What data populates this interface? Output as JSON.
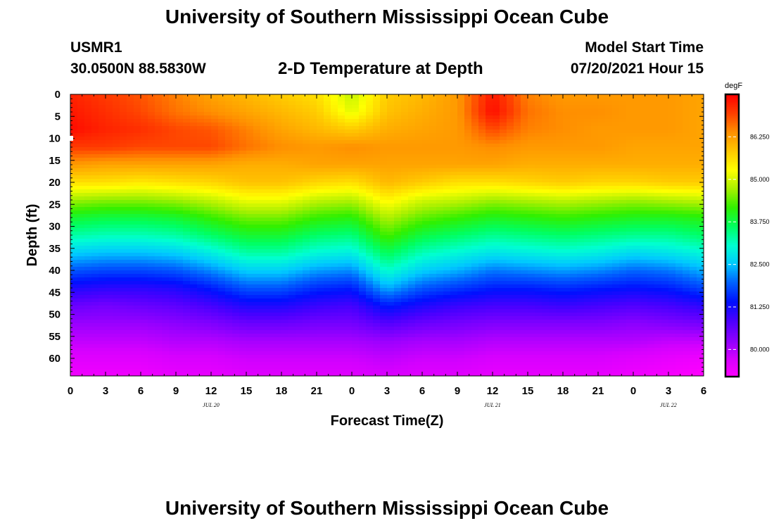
{
  "header": {
    "title": "University of Southern Mississippi Ocean Cube",
    "station_id": "USMR1",
    "coords": "30.0500N  88.5830W",
    "subtitle": "2-D Temperature at Depth",
    "start_label": "Model Start Time",
    "start_value": "07/20/2021 Hour 15"
  },
  "footer": {
    "title": "University of Southern Mississippi Ocean Cube"
  },
  "chart_data": {
    "type": "heatmap",
    "title": "2-D Temperature at Depth",
    "xlabel": "Forecast Time(Z)",
    "ylabel": "Depth (ft)",
    "x_ticks": [
      "0",
      "3",
      "6",
      "9",
      "12",
      "15",
      "18",
      "21",
      "0",
      "3",
      "6",
      "9",
      "12",
      "15",
      "18",
      "21",
      "0",
      "3",
      "6"
    ],
    "x_range_hours": [
      0,
      54
    ],
    "date_labels": [
      {
        "text": "JUL 20",
        "hour": 12
      },
      {
        "text": "JUL 21",
        "hour": 36
      },
      {
        "text": "JUL 22",
        "hour": 51
      }
    ],
    "y_ticks": [
      "0",
      "5",
      "10",
      "15",
      "20",
      "25",
      "30",
      "35",
      "40",
      "45",
      "50",
      "55",
      "60"
    ],
    "y_range_ft": [
      0,
      64
    ],
    "colorbar": {
      "unit": "degF",
      "min": 79.2,
      "max": 87.5,
      "tick_values": [
        80.0,
        81.25,
        82.5,
        83.75,
        85.0,
        86.25
      ],
      "tick_labels": [
        "80.000",
        "81.250",
        "82.500",
        "83.750",
        "85.000",
        "86.250"
      ]
    },
    "colormap": [
      "#ff00ff",
      "#d400ff",
      "#8a00ff",
      "#4a00ff",
      "#0010ff",
      "#0060ff",
      "#00c8ff",
      "#00ffd0",
      "#00ff60",
      "#30f000",
      "#a8f000",
      "#ffff00",
      "#ffc800",
      "#ff9000",
      "#ff4000",
      "#ff0000"
    ],
    "depth_grid_ft": [
      0,
      4,
      8,
      12,
      16,
      20,
      24,
      28,
      32,
      36,
      40,
      44,
      48,
      52,
      56,
      60,
      64
    ],
    "time_grid_h": [
      0,
      3,
      6,
      9,
      12,
      15,
      18,
      21,
      24,
      27,
      30,
      33,
      36,
      39,
      42,
      45,
      48,
      51,
      54
    ],
    "temperature_degF": [
      [
        87.2,
        87.0,
        86.8,
        86.5,
        86.2,
        86.0,
        85.8,
        85.6,
        84.9,
        85.8,
        86.0,
        86.3,
        87.3,
        86.5,
        86.3,
        86.3,
        86.3,
        86.3,
        86.2
      ],
      [
        87.3,
        87.1,
        86.9,
        86.6,
        86.4,
        86.2,
        86.0,
        85.8,
        85.1,
        85.9,
        86.1,
        86.3,
        87.4,
        86.6,
        86.4,
        86.4,
        86.3,
        86.3,
        86.2
      ],
      [
        87.4,
        87.2,
        87.1,
        86.9,
        86.8,
        86.5,
        86.2,
        86.0,
        85.8,
        86.1,
        86.2,
        86.3,
        86.9,
        86.5,
        86.4,
        86.3,
        86.3,
        86.3,
        86.2
      ],
      [
        87.0,
        87.0,
        86.9,
        86.9,
        86.9,
        86.6,
        86.4,
        86.3,
        86.4,
        86.3,
        86.3,
        86.3,
        86.4,
        86.3,
        86.3,
        86.3,
        86.2,
        86.2,
        86.2
      ],
      [
        86.3,
        86.2,
        86.2,
        86.2,
        86.2,
        86.1,
        86.1,
        86.2,
        86.2,
        86.2,
        86.2,
        86.2,
        86.2,
        86.1,
        86.1,
        86.1,
        86.1,
        86.1,
        86.1
      ],
      [
        85.6,
        85.6,
        85.5,
        85.6,
        85.7,
        85.9,
        85.9,
        85.7,
        85.6,
        86.0,
        85.8,
        85.6,
        85.6,
        85.7,
        85.8,
        85.7,
        85.7,
        85.8,
        85.8
      ],
      [
        84.7,
        84.6,
        84.6,
        84.7,
        84.9,
        85.2,
        85.2,
        84.9,
        84.8,
        85.4,
        85.0,
        84.9,
        84.7,
        84.8,
        84.9,
        84.8,
        84.7,
        84.8,
        84.9
      ],
      [
        83.9,
        83.8,
        83.8,
        83.9,
        84.2,
        84.5,
        84.5,
        84.2,
        84.1,
        84.8,
        84.4,
        84.2,
        84.0,
        84.1,
        84.2,
        84.1,
        84.0,
        84.0,
        84.1
      ],
      [
        83.3,
        83.2,
        83.2,
        83.3,
        83.6,
        83.9,
        83.9,
        83.6,
        83.5,
        84.3,
        83.8,
        83.6,
        83.4,
        83.5,
        83.6,
        83.5,
        83.4,
        83.4,
        83.6
      ],
      [
        82.6,
        82.5,
        82.5,
        82.6,
        82.9,
        83.3,
        83.3,
        83.0,
        82.9,
        83.7,
        83.2,
        83.0,
        82.8,
        82.9,
        83.0,
        82.9,
        82.7,
        82.8,
        83.0
      ],
      [
        81.9,
        81.8,
        81.8,
        81.9,
        82.2,
        82.6,
        82.6,
        82.3,
        82.2,
        83.1,
        82.6,
        82.4,
        82.1,
        82.2,
        82.3,
        82.2,
        82.0,
        82.1,
        82.4
      ],
      [
        81.2,
        81.1,
        81.1,
        81.2,
        81.5,
        81.9,
        81.9,
        81.6,
        81.5,
        82.4,
        81.9,
        81.7,
        81.5,
        81.5,
        81.6,
        81.5,
        81.4,
        81.5,
        81.8
      ],
      [
        80.6,
        80.5,
        80.6,
        80.7,
        80.9,
        81.2,
        81.2,
        81.0,
        80.9,
        81.5,
        81.2,
        81.0,
        80.9,
        80.9,
        81.0,
        80.9,
        80.8,
        80.9,
        81.1
      ],
      [
        80.2,
        80.2,
        80.2,
        80.3,
        80.4,
        80.6,
        80.6,
        80.5,
        80.5,
        80.8,
        80.6,
        80.5,
        80.4,
        80.4,
        80.4,
        80.4,
        80.3,
        80.4,
        80.5
      ],
      [
        79.9,
        79.9,
        79.9,
        80.0,
        80.0,
        80.1,
        80.1,
        80.1,
        80.1,
        80.2,
        80.1,
        80.1,
        80.0,
        80.0,
        80.0,
        80.0,
        80.0,
        79.9,
        79.9
      ],
      [
        79.6,
        79.6,
        79.6,
        79.7,
        79.7,
        79.8,
        79.8,
        79.8,
        79.8,
        79.9,
        79.8,
        79.8,
        79.7,
        79.7,
        79.7,
        79.7,
        79.6,
        79.5,
        79.4
      ],
      [
        79.4,
        79.4,
        79.4,
        79.5,
        79.5,
        79.6,
        79.6,
        79.6,
        79.6,
        79.7,
        79.6,
        79.6,
        79.5,
        79.5,
        79.5,
        79.5,
        79.4,
        79.3,
        79.2
      ]
    ]
  }
}
